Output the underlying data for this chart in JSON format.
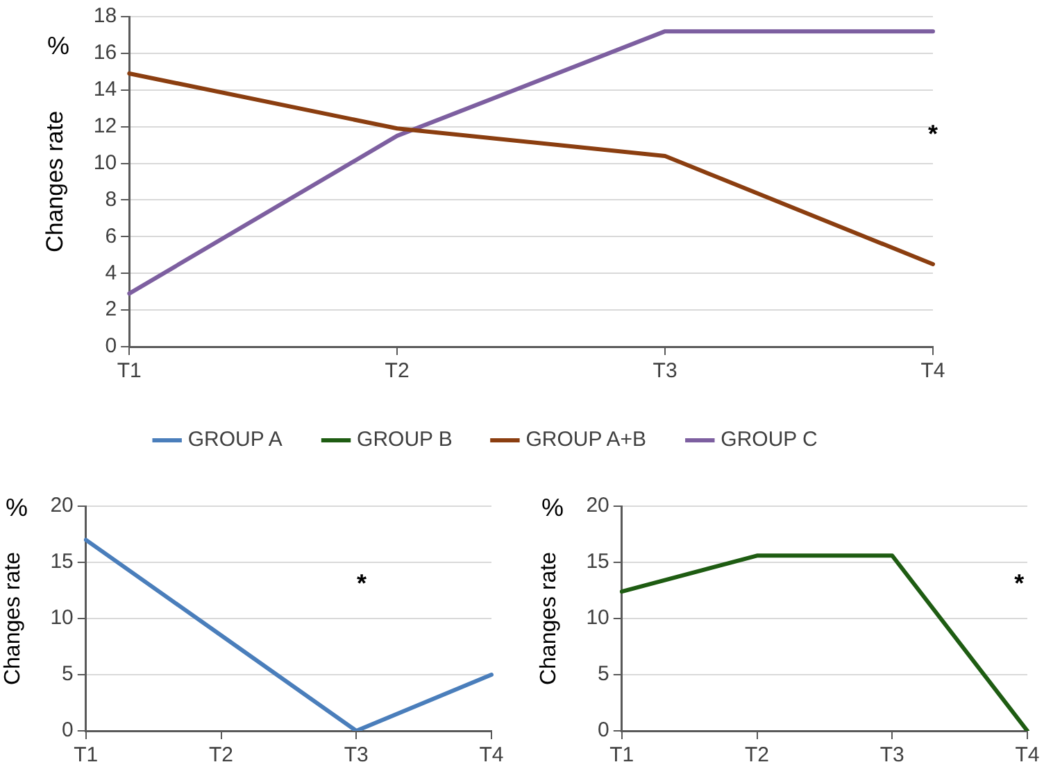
{
  "chart_data": [
    {
      "type": "line",
      "ylabel": "Changes rate",
      "categories": [
        "T1",
        "T2",
        "T3",
        "T4"
      ],
      "ylim": [
        0,
        18
      ],
      "yticks": [
        0,
        2,
        4,
        6,
        8,
        10,
        12,
        14,
        16,
        18
      ],
      "grid": "y",
      "legend": "bottom",
      "marker": "none",
      "series": [
        {
          "name": "GROUP A",
          "color": "#4a7ebb",
          "values": [
            null,
            null,
            null,
            null
          ]
        },
        {
          "name": "GROUP B",
          "color": "#1e5c12",
          "values": [
            null,
            null,
            null,
            null
          ]
        },
        {
          "name": "GROUP A+B",
          "color": "#8b3e10",
          "values": [
            14.9,
            11.9,
            10.4,
            4.5
          ]
        },
        {
          "name": "GROUP C",
          "color": "#7d5fa0",
          "values": [
            2.9,
            11.5,
            17.2,
            17.2
          ]
        }
      ],
      "annotations": [
        "%",
        "*"
      ]
    },
    {
      "type": "line",
      "ylabel": "Changes rate",
      "categories": [
        "T1",
        "T2",
        "T3",
        "T4"
      ],
      "ylim": [
        0,
        20
      ],
      "yticks": [
        0,
        5,
        10,
        15,
        20
      ],
      "grid": "y",
      "marker": "none",
      "series": [
        {
          "color": "#4a7ebb",
          "values": [
            17,
            8.5,
            0,
            5
          ]
        }
      ],
      "annotations": [
        "%",
        "*"
      ]
    },
    {
      "type": "line",
      "ylabel": "Changes rate",
      "categories": [
        "T1",
        "T2",
        "T3",
        "T4"
      ],
      "ylim": [
        0,
        20
      ],
      "yticks": [
        0,
        5,
        10,
        15,
        20
      ],
      "grid": "y",
      "marker": "none",
      "series": [
        {
          "color": "#1e5c12",
          "values": [
            12.4,
            15.6,
            15.6,
            0
          ]
        }
      ],
      "annotations": [
        "%",
        "*"
      ]
    }
  ]
}
